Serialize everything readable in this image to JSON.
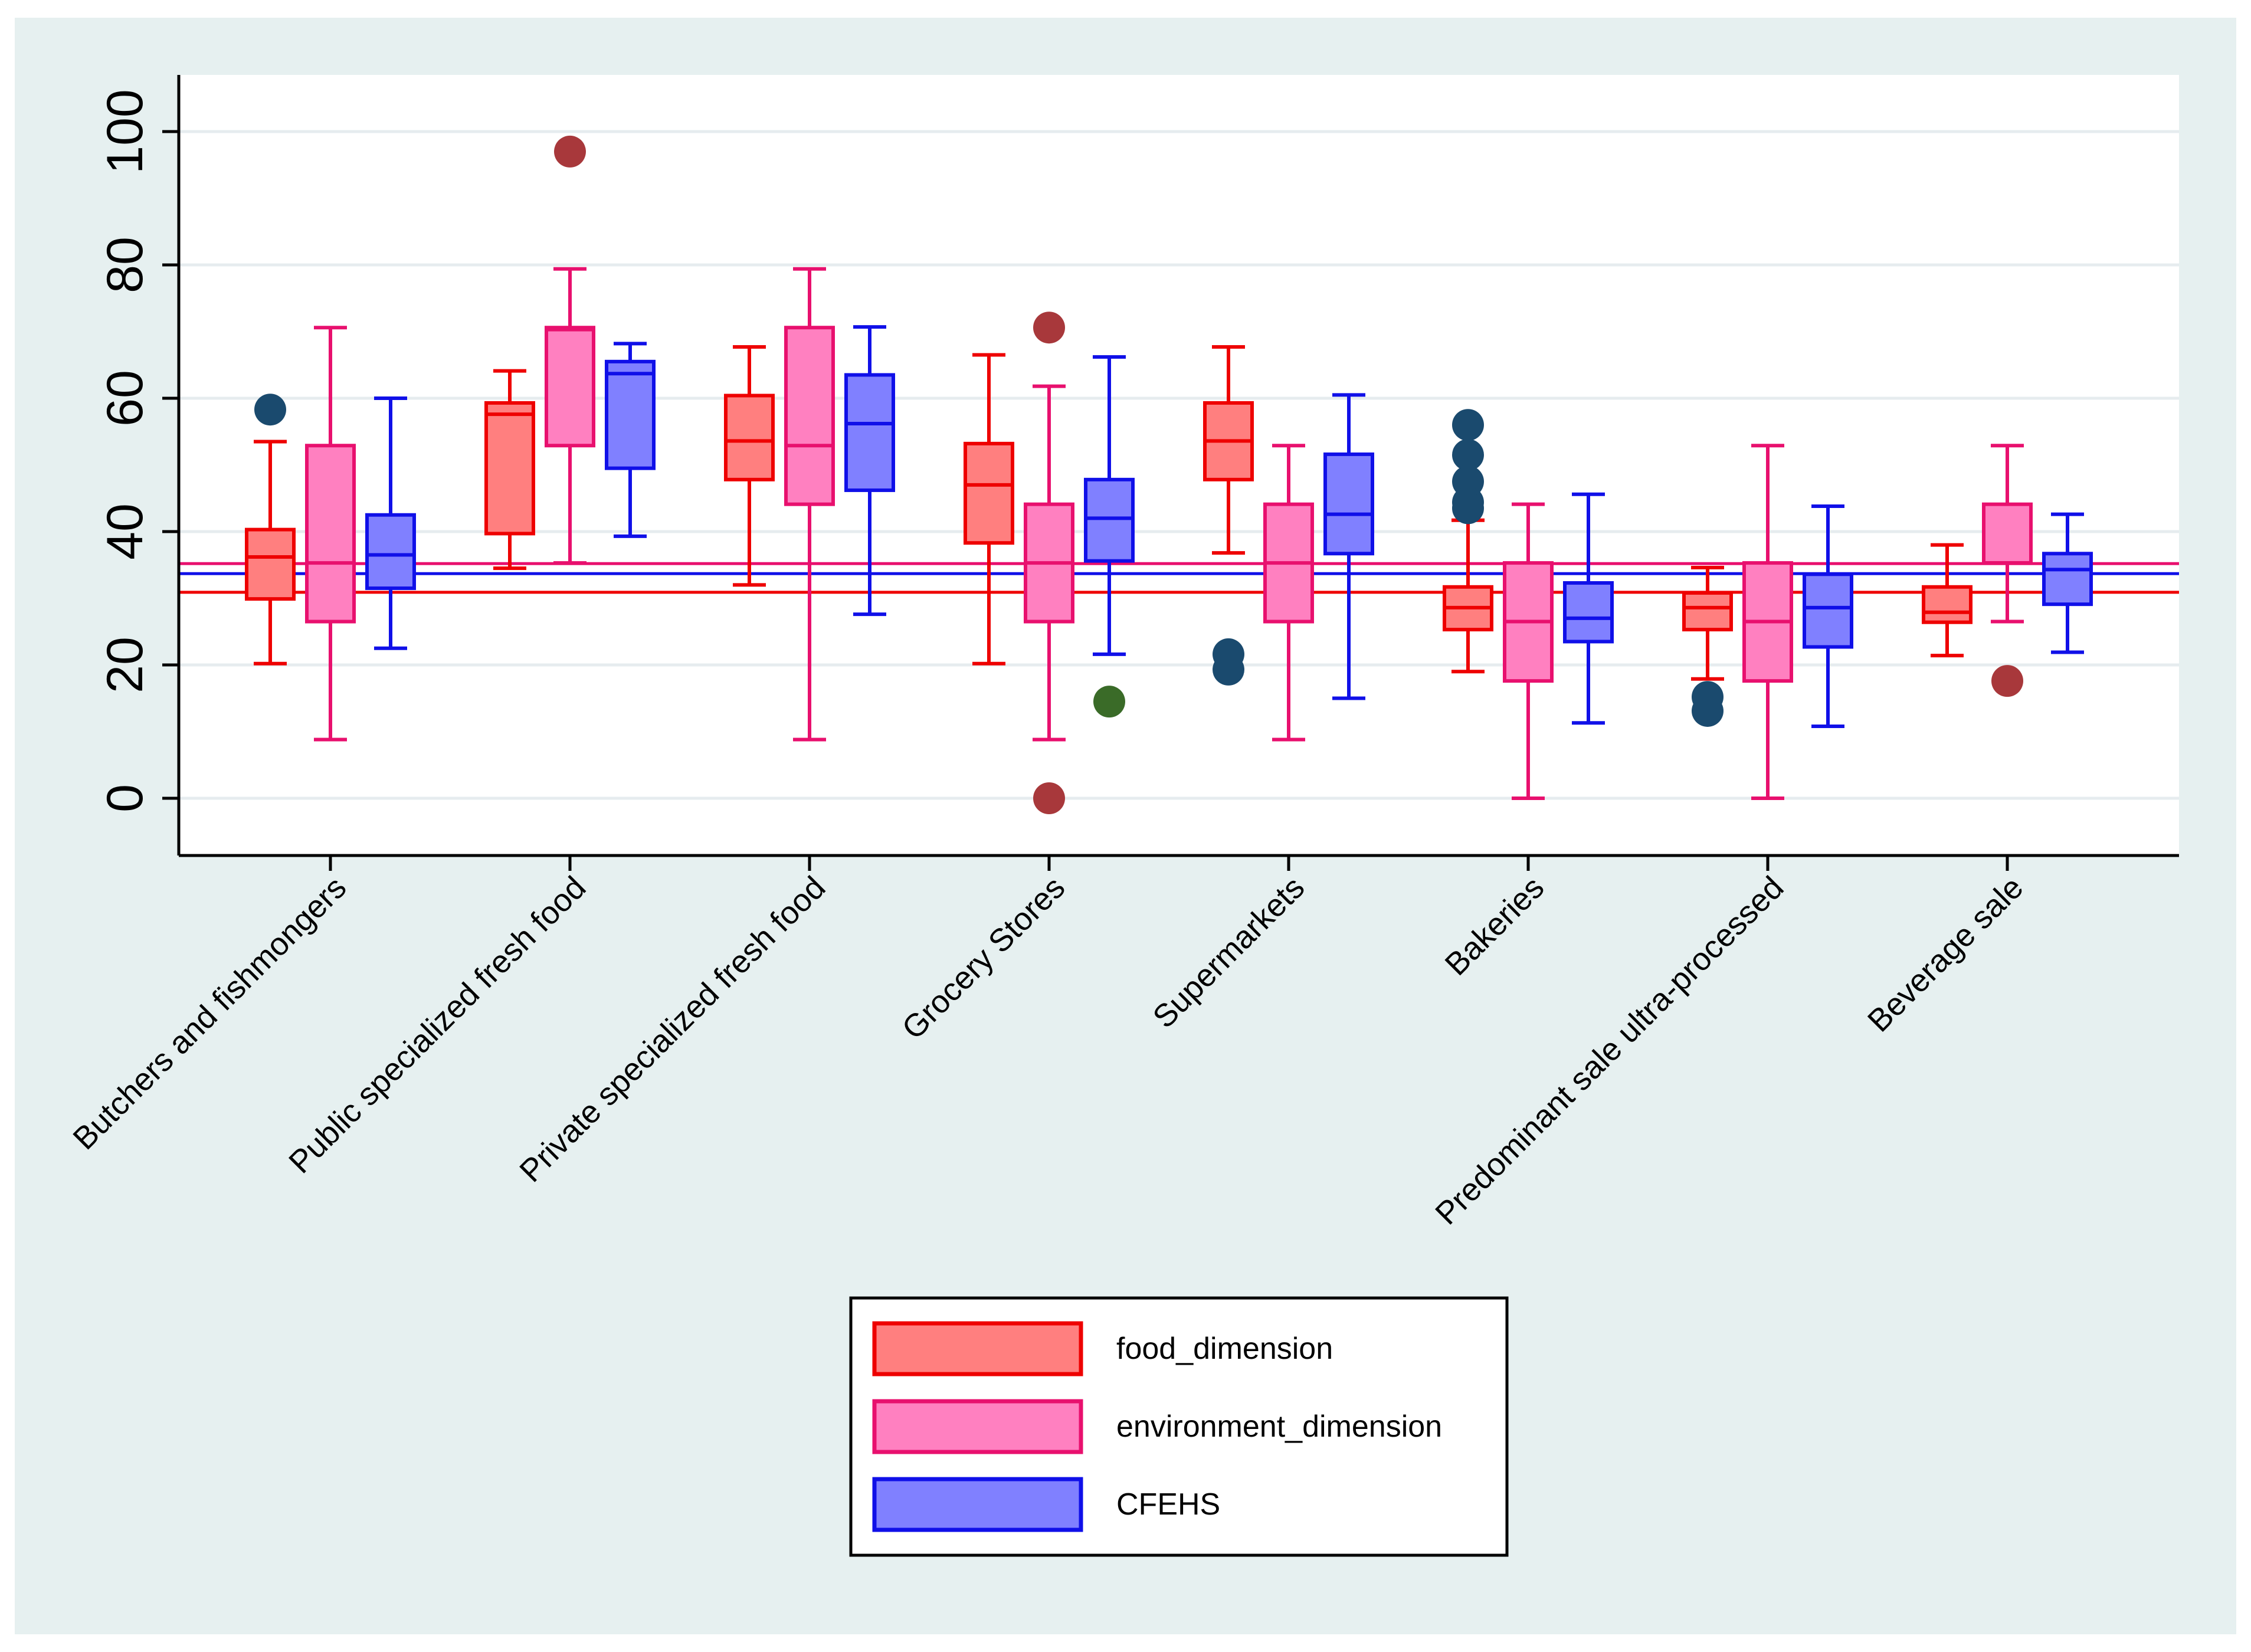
{
  "chart_data": {
    "type": "box",
    "title": "",
    "xlabel": "",
    "ylabel": "",
    "ylim": [
      -8,
      108
    ],
    "yticks": [
      0,
      20,
      40,
      60,
      80,
      100
    ],
    "grid": true,
    "legend_position": "bottom-center",
    "categories": [
      "Butchers and fishmongers",
      "Public specialized fresh food",
      "Private specialized fresh food",
      "Grocery Stores",
      "Supermarkets",
      "Bakeries",
      "Predominant sale ultra-processed",
      "Beverage sale"
    ],
    "series": [
      {
        "name": "food_dimension",
        "stroke": "#ee0000",
        "fill": "#ff7f7f",
        "outlier_color": "#a8383b",
        "reference_line": 30.9,
        "boxes": [
          {
            "whisker_low": 20.2,
            "q1": 29.9,
            "median": 36.2,
            "q3": 40.3,
            "whisker_high": 53.5,
            "outliers": [
              58.3
            ]
          },
          {
            "whisker_low": 34.5,
            "q1": 39.7,
            "median": 57.6,
            "q3": 59.3,
            "whisker_high": 64.1,
            "outliers": []
          },
          {
            "whisker_low": 32.0,
            "q1": 47.8,
            "median": 53.6,
            "q3": 60.4,
            "whisker_high": 67.7,
            "outliers": []
          },
          {
            "whisker_low": 20.2,
            "q1": 38.3,
            "median": 47.0,
            "q3": 53.2,
            "whisker_high": 66.5,
            "outliers": []
          },
          {
            "whisker_low": 36.8,
            "q1": 47.8,
            "median": 53.6,
            "q3": 59.3,
            "whisker_high": 67.7,
            "outliers": [
              21.6,
              19.3
            ]
          },
          {
            "whisker_low": 19.0,
            "q1": 25.3,
            "median": 28.6,
            "q3": 31.7,
            "whisker_high": 41.7,
            "outliers": [
              56.0,
              51.5,
              47.5,
              44.4,
              43.5
            ]
          },
          {
            "whisker_low": 17.9,
            "q1": 25.3,
            "median": 28.6,
            "q3": 30.8,
            "whisker_high": 34.6,
            "outliers": [
              15.2,
              13.1
            ]
          },
          {
            "whisker_low": 21.4,
            "q1": 26.4,
            "median": 27.9,
            "q3": 31.7,
            "whisker_high": 38.0,
            "outliers": []
          }
        ]
      },
      {
        "name": "environment_dimension",
        "stroke": "#e8106e",
        "fill": "#ff80c0",
        "outlier_color": "#a8383b",
        "reference_line": 35.2,
        "boxes": [
          {
            "whisker_low": 8.8,
            "q1": 26.5,
            "median": 35.3,
            "q3": 52.9,
            "whisker_high": 70.6,
            "outliers": []
          },
          {
            "whisker_low": 35.3,
            "q1": 52.9,
            "median": 70.3,
            "q3": 70.6,
            "whisker_high": 79.4,
            "outliers": [
              97.0
            ]
          },
          {
            "whisker_low": 8.8,
            "q1": 44.1,
            "median": 52.9,
            "q3": 70.6,
            "whisker_high": 79.4,
            "outliers": []
          },
          {
            "whisker_low": 8.8,
            "q1": 26.5,
            "median": 35.3,
            "q3": 44.1,
            "whisker_high": 61.8,
            "outliers": [
              70.6,
              0.0
            ]
          },
          {
            "whisker_low": 8.8,
            "q1": 26.5,
            "median": 35.3,
            "q3": 44.1,
            "whisker_high": 52.9,
            "outliers": []
          },
          {
            "whisker_low": 0.0,
            "q1": 17.6,
            "median": 26.5,
            "q3": 35.3,
            "whisker_high": 44.1,
            "outliers": []
          },
          {
            "whisker_low": 0.0,
            "q1": 17.6,
            "median": 26.5,
            "q3": 35.3,
            "whisker_high": 52.9,
            "outliers": []
          },
          {
            "whisker_low": 26.5,
            "q1": 35.3,
            "median": 35.3,
            "q3": 44.1,
            "whisker_high": 52.9,
            "outliers": [
              17.6
            ]
          }
        ]
      },
      {
        "name": "CFEHS",
        "stroke": "#1010e8",
        "fill": "#8080ff",
        "outlier_color": "#1a4a6e",
        "reference_line": 33.7,
        "boxes": [
          {
            "whisker_low": 22.5,
            "q1": 31.5,
            "median": 36.5,
            "q3": 42.5,
            "whisker_high": 60.0,
            "outliers": []
          },
          {
            "whisker_low": 39.3,
            "q1": 49.5,
            "median": 63.7,
            "q3": 65.5,
            "whisker_high": 68.2,
            "outliers": []
          },
          {
            "whisker_low": 27.6,
            "q1": 46.2,
            "median": 56.2,
            "q3": 63.5,
            "whisker_high": 70.7,
            "outliers": []
          },
          {
            "whisker_low": 21.6,
            "q1": 35.6,
            "median": 42.0,
            "q3": 47.8,
            "whisker_high": 66.2,
            "outliers": [
              14.5
            ]
          },
          {
            "whisker_low": 15.0,
            "q1": 36.7,
            "median": 42.6,
            "q3": 51.6,
            "whisker_high": 60.5,
            "outliers": []
          },
          {
            "whisker_low": 11.3,
            "q1": 23.5,
            "median": 27.0,
            "q3": 32.3,
            "whisker_high": 45.6,
            "outliers": []
          },
          {
            "whisker_low": 10.8,
            "q1": 22.7,
            "median": 28.6,
            "q3": 33.6,
            "whisker_high": 43.8,
            "outliers": []
          },
          {
            "whisker_low": 21.9,
            "q1": 29.1,
            "median": 34.3,
            "q3": 36.7,
            "whisker_high": 42.6,
            "outliers": []
          }
        ]
      }
    ],
    "outlier_color_overrides": {
      "Grocery Stores|CFEHS|14.5": "#3a6b28",
      "Butchers and fishmongers|food_dimension|58.3": "#1a4a6e",
      "Supermarkets|food_dimension|21.6": "#1a4a6e",
      "Supermarkets|food_dimension|19.3": "#1a4a6e",
      "Bakeries|food_dimension|56.0": "#1a4a6e",
      "Bakeries|food_dimension|51.5": "#1a4a6e",
      "Bakeries|food_dimension|47.5": "#1a4a6e",
      "Bakeries|food_dimension|44.4": "#1a4a6e",
      "Bakeries|food_dimension|43.5": "#1a4a6e",
      "Predominant sale ultra-processed|food_dimension|15.2": "#1a4a6e",
      "Predominant sale ultra-processed|food_dimension|13.1": "#1a4a6e"
    },
    "legend": [
      "food_dimension",
      "environment_dimension",
      "CFEHS"
    ]
  },
  "colors": {
    "outer_background": "#e6f0f0",
    "plot_background": "#ffffff",
    "gridline": "#e6ecef",
    "axis": "#000000"
  }
}
